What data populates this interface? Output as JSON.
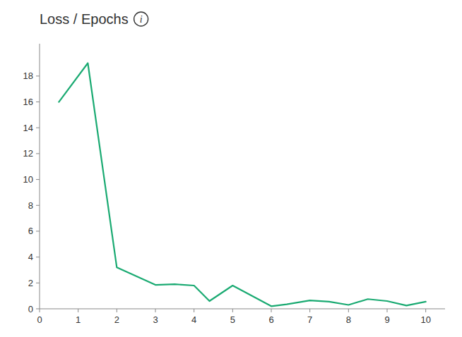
{
  "chart_data": {
    "type": "line",
    "title": "Loss / Epochs",
    "annotations": [
      "i"
    ],
    "x": [
      0.5,
      1.25,
      2.0,
      3.0,
      3.5,
      4.0,
      4.4,
      5.0,
      6.0,
      6.4,
      7.0,
      7.5,
      8.0,
      8.5,
      9.0,
      9.5,
      10.0
    ],
    "y": [
      16.0,
      19.0,
      3.2,
      1.85,
      1.9,
      1.8,
      0.6,
      1.8,
      0.2,
      0.35,
      0.65,
      0.55,
      0.3,
      0.75,
      0.6,
      0.25,
      0.55
    ],
    "color": "#1aaa72",
    "xlim": [
      0,
      10.5
    ],
    "ylim": [
      0,
      20.5
    ],
    "xticks": [
      0,
      1,
      2,
      3,
      4,
      5,
      6,
      7,
      8,
      9,
      10
    ],
    "yticks": [
      0,
      2,
      4,
      6,
      8,
      10,
      12,
      14,
      16,
      18
    ],
    "grid": false
  }
}
